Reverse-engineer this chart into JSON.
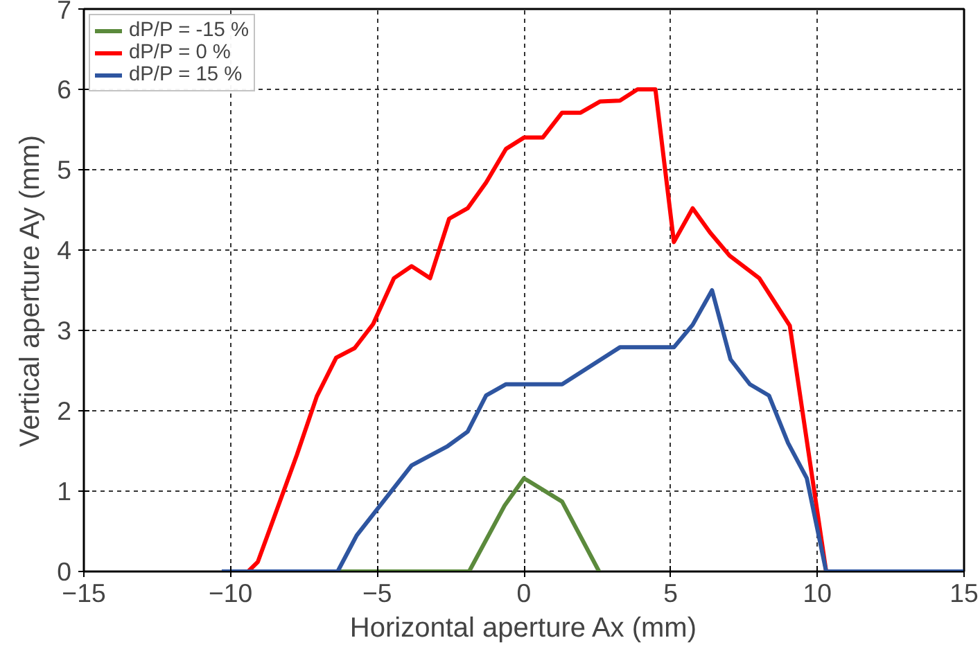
{
  "chart_data": {
    "type": "line",
    "xlabel": "Horizontal aperture Ax (mm)",
    "ylabel": "Vertical aperture Ay (mm)",
    "xlim": [
      -15,
      15
    ],
    "xticks": [
      -15,
      -10,
      -5,
      0,
      5,
      10,
      15
    ],
    "ylim": [
      0,
      7
    ],
    "yticks": [
      0,
      1,
      2,
      3,
      4,
      5,
      6,
      7
    ],
    "grid": true,
    "legend": "top left",
    "marker": "none",
    "line_style": "solid",
    "series": [
      {
        "name": "dP/P = -15 %",
        "color": "#5b8a3c",
        "x": [
          -10.3,
          -1.87,
          -0.66,
          0,
          1.3,
          2.56
        ],
        "values": [
          0,
          0,
          0.82,
          1.16,
          0.87,
          0
        ]
      },
      {
        "name": "dP/P = 0 %",
        "color": "#ff0000",
        "x": [
          -10.3,
          -9.4,
          -9.07,
          -7.74,
          -7.06,
          -6.4,
          -5.77,
          -5.14,
          -4.43,
          -3.83,
          -3.2,
          -2.55,
          -1.92,
          -1.29,
          -0.61,
          0,
          0.64,
          1.3,
          1.93,
          2.6,
          3.27,
          3.87,
          4.48,
          5.11,
          5.75,
          6.34,
          7.01,
          8.02,
          9.06,
          10.3,
          15
        ],
        "values": [
          0,
          0,
          0.12,
          1.45,
          2.18,
          2.66,
          2.78,
          3.08,
          3.65,
          3.8,
          3.65,
          4.39,
          4.52,
          4.84,
          5.26,
          5.4,
          5.4,
          5.71,
          5.71,
          5.85,
          5.86,
          6.0,
          6.0,
          4.1,
          4.52,
          4.22,
          3.93,
          3.65,
          3.06,
          0,
          0
        ]
      },
      {
        "name": "dP/P = 15 %",
        "color": "#2e55a0",
        "x": [
          -10.3,
          -6.35,
          -5.7,
          -3.83,
          -2.6,
          -1.92,
          -1.29,
          -0.61,
          1.3,
          3.27,
          5.11,
          5.75,
          6.41,
          7.04,
          7.7,
          8.35,
          9.0,
          9.64,
          10.3,
          15
        ],
        "values": [
          0,
          0,
          0.45,
          1.32,
          1.56,
          1.74,
          2.19,
          2.33,
          2.33,
          2.79,
          2.79,
          3.07,
          3.5,
          2.64,
          2.33,
          2.19,
          1.6,
          1.16,
          0,
          0
        ]
      }
    ]
  }
}
